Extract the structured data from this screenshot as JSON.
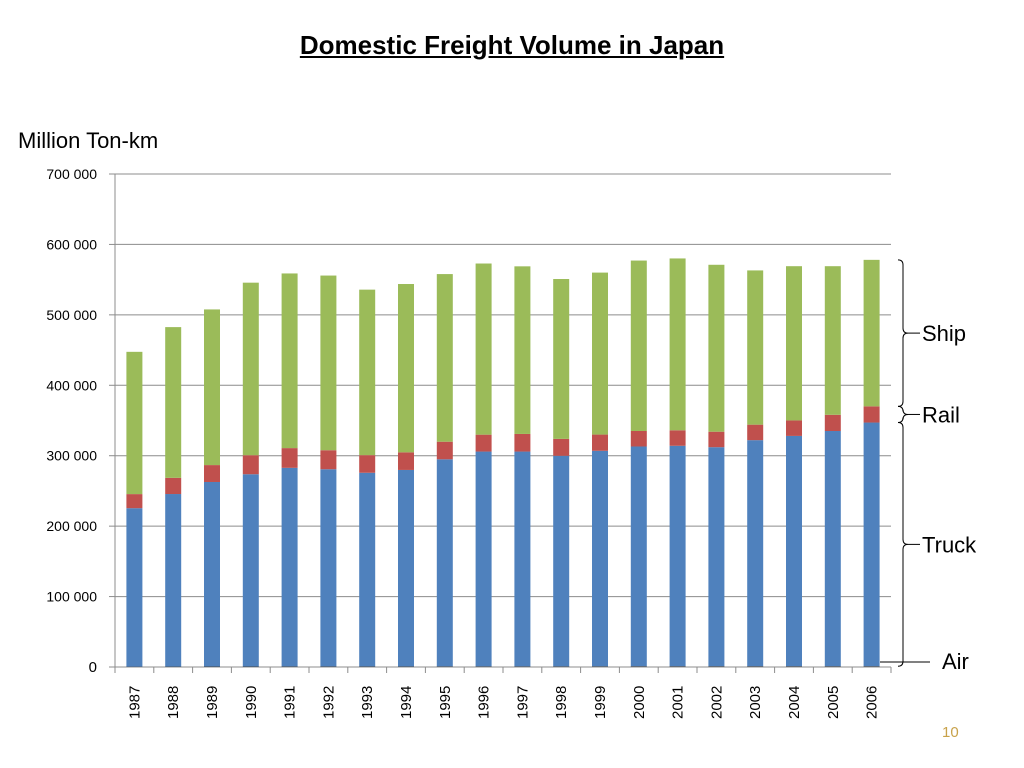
{
  "slide": {
    "title": "Domestic Freight Volume in Japan",
    "unit_label": "Million Ton-km",
    "page_number": "10",
    "page_number_color": "#c8a24a"
  },
  "chart_data": {
    "type": "bar",
    "stacked": true,
    "categories": [
      "1987",
      "1988",
      "1989",
      "1990",
      "1991",
      "1992",
      "1993",
      "1994",
      "1995",
      "1996",
      "1997",
      "1998",
      "1999",
      "2000",
      "2001",
      "2002",
      "2003",
      "2004",
      "2005",
      "2006"
    ],
    "ylim": [
      0,
      700000
    ],
    "yticks": [
      0,
      100000,
      200000,
      300000,
      400000,
      500000,
      600000,
      700000
    ],
    "ytick_labels": [
      "0",
      "100 000",
      "200 000",
      "300 000",
      "400 000",
      "500 000",
      "600 000",
      "700 000"
    ],
    "grid": true,
    "legend": "right-brackets",
    "series": [
      {
        "name": "Air",
        "color": "#4a4a4a",
        "values": [
          500,
          600,
          700,
          700,
          800,
          800,
          800,
          800,
          900,
          900,
          900,
          900,
          1000,
          1100,
          1100,
          1100,
          1100,
          1100,
          1100,
          1100
        ]
      },
      {
        "name": "Truck",
        "color": "#4f81bd",
        "values": [
          225000,
          245000,
          262000,
          273000,
          282000,
          280000,
          275000,
          279000,
          294000,
          305000,
          305000,
          299000,
          306000,
          312000,
          313000,
          311000,
          321000,
          327000,
          334000,
          346000
        ]
      },
      {
        "name": "Rail",
        "color": "#c0504d",
        "values": [
          20000,
          23000,
          24000,
          27000,
          28000,
          27000,
          25000,
          25000,
          25000,
          24000,
          25000,
          24000,
          23000,
          22000,
          22000,
          22000,
          22000,
          22000,
          23000,
          23000
        ]
      },
      {
        "name": "Ship",
        "color": "#9bbb59",
        "values": [
          202000,
          214000,
          221000,
          245000,
          248000,
          248000,
          235000,
          239000,
          238000,
          243000,
          238000,
          227000,
          230000,
          242000,
          244000,
          237000,
          219000,
          219000,
          211000,
          208000
        ]
      }
    ]
  }
}
